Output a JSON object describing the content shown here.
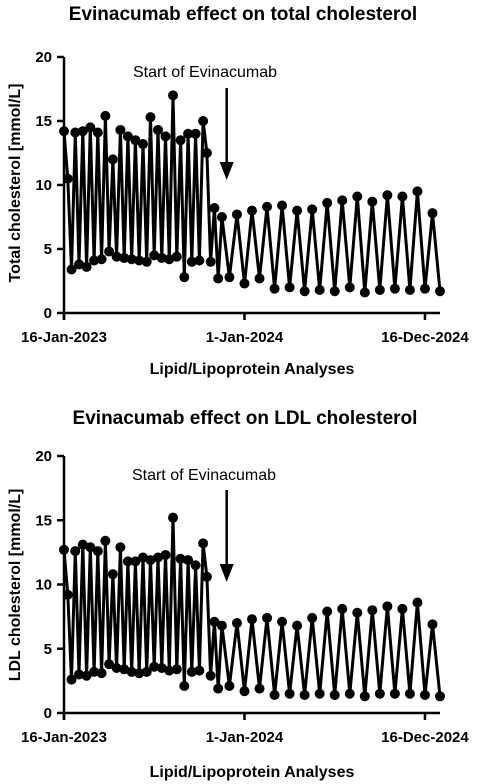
{
  "chart_data": [
    {
      "type": "line",
      "title": "Evinacumab effect on total cholesterol",
      "xlabel": "Lipid/Lipoprotein Analyses",
      "ylabel": "Total cholesterol [mmol/L]",
      "ylim": [
        0,
        20
      ],
      "yticks": [
        0,
        5,
        10,
        15,
        20
      ],
      "xticks": [
        "16-Jan-2023",
        "1-Jan-2024",
        "16-Dec-2024"
      ],
      "xtick_positions": [
        0,
        24,
        48
      ],
      "annotation": {
        "text": "Start of Evinacumab",
        "at_x": 21.5
      },
      "x": [
        0,
        0.5,
        1,
        1.5,
        2,
        2.5,
        3,
        3.5,
        4,
        4.5,
        5,
        5.5,
        6,
        6.5,
        7,
        7.5,
        8,
        8.5,
        9,
        9.5,
        10,
        10.5,
        11,
        11.5,
        12,
        12.5,
        13,
        13.5,
        14,
        14.5,
        15,
        15.5,
        16,
        16.5,
        17,
        17.5,
        18,
        18.5,
        19,
        19.5,
        20,
        20.5,
        21,
        22,
        23,
        24,
        25,
        26,
        27,
        28,
        29,
        30,
        31,
        32,
        33,
        34,
        35,
        36,
        37,
        38,
        39,
        40,
        41,
        42,
        43,
        44,
        45,
        46,
        47,
        48,
        49,
        50
      ],
      "y": [
        14.2,
        10.5,
        3.4,
        14.1,
        3.8,
        14.2,
        3.6,
        14.5,
        4.1,
        14.1,
        4.2,
        15.4,
        4.8,
        12.0,
        4.4,
        14.3,
        4.3,
        13.8,
        4.2,
        13.5,
        4.1,
        13.2,
        4.0,
        15.3,
        4.5,
        14.3,
        4.3,
        13.8,
        4.2,
        17.0,
        4.4,
        13.5,
        2.8,
        14.0,
        4.0,
        14.0,
        4.1,
        15.0,
        12.5,
        4.0,
        8.2,
        2.7,
        7.5,
        2.8,
        7.7,
        2.3,
        8.0,
        2.7,
        8.3,
        1.9,
        8.4,
        2.0,
        8.0,
        1.7,
        8.1,
        1.8,
        8.6,
        1.7,
        8.8,
        2.0,
        9.1,
        1.6,
        8.7,
        1.8,
        9.2,
        1.9,
        9.1,
        1.8,
        9.5,
        1.9,
        7.8,
        1.7
      ]
    },
    {
      "type": "line",
      "title": "Evinacumab effect on LDL cholesterol",
      "xlabel": "Lipid/Lipoprotein Analyses",
      "ylabel": "LDL cholesterol [mmol/L]",
      "ylim": [
        0,
        20
      ],
      "yticks": [
        0,
        5,
        10,
        15,
        20
      ],
      "xticks": [
        "16-Jan-2023",
        "1-Jan-2024",
        "16-Dec-2024"
      ],
      "xtick_positions": [
        0,
        24,
        48
      ],
      "annotation": {
        "text": "Start of Evinacumab",
        "at_x": 21.5
      },
      "x": [
        0,
        0.5,
        1,
        1.5,
        2,
        2.5,
        3,
        3.5,
        4,
        4.5,
        5,
        5.5,
        6,
        6.5,
        7,
        7.5,
        8,
        8.5,
        9,
        9.5,
        10,
        10.5,
        11,
        11.5,
        12,
        12.5,
        13,
        13.5,
        14,
        14.5,
        15,
        15.5,
        16,
        16.5,
        17,
        17.5,
        18,
        18.5,
        19,
        19.5,
        20,
        20.5,
        21,
        22,
        23,
        24,
        25,
        26,
        27,
        28,
        29,
        30,
        31,
        32,
        33,
        34,
        35,
        36,
        37,
        38,
        39,
        40,
        41,
        42,
        43,
        44,
        45,
        46,
        47,
        48,
        49,
        50
      ],
      "y": [
        12.7,
        9.2,
        2.6,
        12.6,
        3.0,
        13.1,
        2.9,
        12.9,
        3.2,
        12.6,
        3.1,
        13.4,
        3.8,
        10.8,
        3.5,
        12.9,
        3.4,
        11.8,
        3.2,
        11.8,
        3.1,
        12.1,
        3.2,
        11.9,
        3.6,
        12.1,
        3.5,
        12.3,
        3.3,
        15.2,
        3.4,
        12.0,
        2.1,
        11.9,
        3.2,
        11.5,
        3.3,
        13.2,
        10.6,
        2.9,
        7.1,
        1.9,
        6.8,
        2.1,
        7.0,
        1.7,
        7.3,
        1.9,
        7.4,
        1.4,
        7.1,
        1.5,
        6.8,
        1.4,
        7.4,
        1.5,
        7.9,
        1.4,
        8.1,
        1.5,
        7.8,
        1.3,
        8.0,
        1.5,
        8.3,
        1.5,
        8.1,
        1.5,
        8.6,
        1.4,
        6.9,
        1.3
      ]
    }
  ]
}
